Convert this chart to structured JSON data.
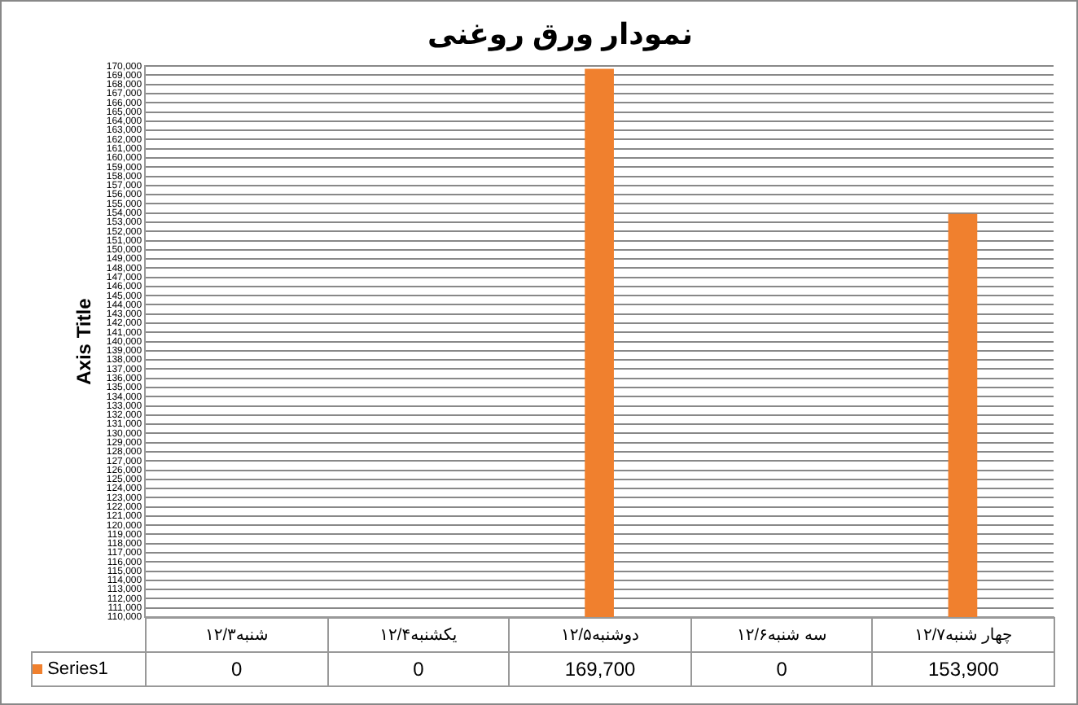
{
  "chart_data": {
    "type": "bar",
    "title": "نمودار ورق روغنی",
    "ylabel": "Axis Title",
    "categories": [
      "شنبه۱۲/۳",
      "یکشنبه۱۲/۴",
      "دوشنبه۱۲/۵",
      "سه شنبه۱۲/۶",
      "چهار شنبه۱۲/۷"
    ],
    "series": [
      {
        "name": "Series1",
        "color": "#f0802e",
        "values": [
          null,
          null,
          169700,
          null,
          153900
        ]
      }
    ],
    "value_labels": [
      "0",
      "0",
      "169,700",
      "0",
      "153,900"
    ],
    "ylim": [
      110000,
      170000
    ],
    "yticks": [
      {
        "value": 110000,
        "label": "110,000"
      },
      {
        "value": 111000,
        "label": "111,000"
      },
      {
        "value": 112000,
        "label": "112,000"
      },
      {
        "value": 113000,
        "label": "113,000"
      },
      {
        "value": 114000,
        "label": "114,000"
      },
      {
        "value": 115000,
        "label": "115,000"
      },
      {
        "value": 116000,
        "label": "116,000"
      },
      {
        "value": 117000,
        "label": "117,000"
      },
      {
        "value": 118000,
        "label": "118,000"
      },
      {
        "value": 119000,
        "label": "119,000"
      },
      {
        "value": 120000,
        "label": "120,000"
      },
      {
        "value": 121000,
        "label": "121,000"
      },
      {
        "value": 122000,
        "label": "122,000"
      },
      {
        "value": 123000,
        "label": "123,000"
      },
      {
        "value": 124000,
        "label": "124,000"
      },
      {
        "value": 125000,
        "label": "125,000"
      },
      {
        "value": 126000,
        "label": "126,000"
      },
      {
        "value": 127000,
        "label": "127,000"
      },
      {
        "value": 128000,
        "label": "128,000"
      },
      {
        "value": 129000,
        "label": "129,000"
      },
      {
        "value": 130000,
        "label": "130,000"
      },
      {
        "value": 131000,
        "label": "131,000"
      },
      {
        "value": 132000,
        "label": "132,000"
      },
      {
        "value": 133000,
        "label": "133,000"
      },
      {
        "value": 134000,
        "label": "134,000"
      },
      {
        "value": 135000,
        "label": "135,000"
      },
      {
        "value": 136000,
        "label": "136,000"
      },
      {
        "value": 137000,
        "label": "137,000"
      },
      {
        "value": 138000,
        "label": "138,000"
      },
      {
        "value": 139000,
        "label": "139,000"
      },
      {
        "value": 140000,
        "label": "140,000"
      },
      {
        "value": 141000,
        "label": "141,000"
      },
      {
        "value": 142000,
        "label": "142,000"
      },
      {
        "value": 143000,
        "label": "143,000"
      },
      {
        "value": 144000,
        "label": "144,000"
      },
      {
        "value": 145000,
        "label": "145,000"
      },
      {
        "value": 146000,
        "label": "146,000"
      },
      {
        "value": 147000,
        "label": "147,000"
      },
      {
        "value": 148000,
        "label": "148,000"
      },
      {
        "value": 149000,
        "label": "149,000"
      },
      {
        "value": 150000,
        "label": "150,000"
      },
      {
        "value": 151000,
        "label": "151,000"
      },
      {
        "value": 152000,
        "label": "152,000"
      },
      {
        "value": 153000,
        "label": "153,000"
      },
      {
        "value": 154000,
        "label": "154,000"
      },
      {
        "value": 155000,
        "label": "155,000"
      },
      {
        "value": 156000,
        "label": "156,000"
      },
      {
        "value": 157000,
        "label": "157,000"
      },
      {
        "value": 158000,
        "label": "158,000"
      },
      {
        "value": 159000,
        "label": "159,000"
      },
      {
        "value": 160000,
        "label": "160,000"
      },
      {
        "value": 161000,
        "label": "161,000"
      },
      {
        "value": 162000,
        "label": "162,000"
      },
      {
        "value": 163000,
        "label": "163,000"
      },
      {
        "value": 164000,
        "label": "164,000"
      },
      {
        "value": 165000,
        "label": "165,000"
      },
      {
        "value": 166000,
        "label": "166,000"
      },
      {
        "value": 167000,
        "label": "167,000"
      },
      {
        "value": 168000,
        "label": "168,000"
      },
      {
        "value": 169000,
        "label": "169,000"
      },
      {
        "value": 170000,
        "label": "170,000"
      }
    ],
    "grid": "y"
  }
}
